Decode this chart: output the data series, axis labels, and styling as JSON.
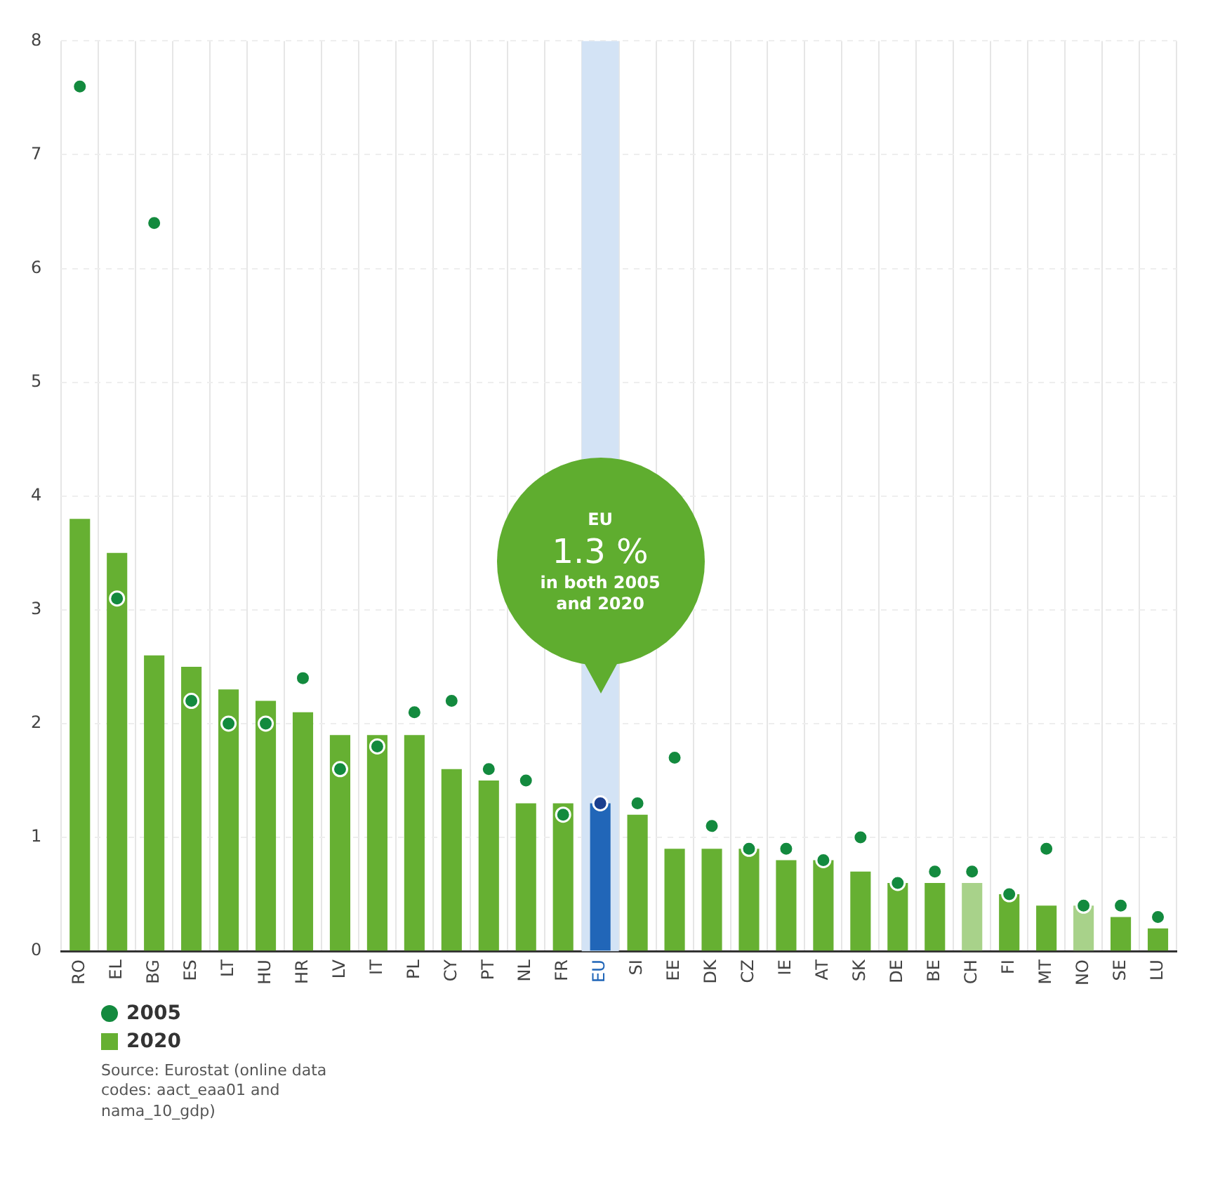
{
  "chart_data": {
    "type": "bar",
    "categories": [
      "RO",
      "EL",
      "BG",
      "ES",
      "LT",
      "HU",
      "HR",
      "LV",
      "IT",
      "PL",
      "CY",
      "PT",
      "NL",
      "FR",
      "EU",
      "SI",
      "EE",
      "DK",
      "CZ",
      "IE",
      "AT",
      "SK",
      "DE",
      "BE",
      "CH",
      "FI",
      "MT",
      "NO",
      "SE",
      "LU"
    ],
    "series": [
      {
        "name": "2005",
        "type": "scatter",
        "color": "#138a3e",
        "values": [
          7.6,
          3.1,
          6.4,
          2.2,
          2.0,
          2.0,
          2.4,
          1.6,
          1.8,
          2.1,
          2.2,
          1.6,
          1.5,
          1.2,
          1.3,
          1.3,
          1.7,
          1.1,
          0.9,
          0.9,
          0.8,
          1.0,
          0.6,
          0.7,
          0.7,
          0.5,
          0.9,
          0.4,
          0.4,
          0.3
        ],
        "colors": [
          "#138a3e",
          "#138a3e",
          "#138a3e",
          "#138a3e",
          "#138a3e",
          "#138a3e",
          "#138a3e",
          "#138a3e",
          "#138a3e",
          "#138a3e",
          "#138a3e",
          "#138a3e",
          "#138a3e",
          "#138a3e",
          "#1a3f8f",
          "#138a3e",
          "#138a3e",
          "#138a3e",
          "#138a3e",
          "#138a3e",
          "#138a3e",
          "#138a3e",
          "#138a3e",
          "#138a3e",
          "#138a3e",
          "#138a3e",
          "#138a3e",
          "#138a3e",
          "#138a3e",
          "#138a3e"
        ]
      },
      {
        "name": "2020",
        "color": "#66b032",
        "values": [
          3.8,
          3.5,
          2.6,
          2.5,
          2.3,
          2.2,
          2.1,
          1.9,
          1.9,
          1.9,
          1.6,
          1.5,
          1.3,
          1.3,
          1.3,
          1.2,
          0.9,
          0.9,
          0.9,
          0.8,
          0.8,
          0.7,
          0.6,
          0.6,
          0.6,
          0.5,
          0.4,
          0.4,
          0.3,
          0.2
        ],
        "colors": [
          "#66b032",
          "#66b032",
          "#66b032",
          "#66b032",
          "#66b032",
          "#66b032",
          "#66b032",
          "#66b032",
          "#66b032",
          "#66b032",
          "#66b032",
          "#66b032",
          "#66b032",
          "#66b032",
          "#2166b8",
          "#66b032",
          "#66b032",
          "#66b032",
          "#66b032",
          "#66b032",
          "#66b032",
          "#66b032",
          "#66b032",
          "#66b032",
          "#a8d28a",
          "#66b032",
          "#66b032",
          "#a8d28a",
          "#66b032",
          "#66b032"
        ]
      }
    ],
    "ylim": [
      0,
      8
    ],
    "yticks": [
      0,
      1,
      2,
      3,
      4,
      5,
      6,
      7,
      8
    ],
    "grid": true,
    "legend": "bottom left",
    "marker": "circle",
    "bands": [
      {
        "axis": "x",
        "from": "EU",
        "to": "EU",
        "color": "#d3e3f5"
      }
    ],
    "annotations": [
      "EU\n1.3 %\nin both 2005\nand 2020",
      "Source: Eurostat (online data codes: aact_eaa01 and nama_10_gdp)"
    ]
  }
}
